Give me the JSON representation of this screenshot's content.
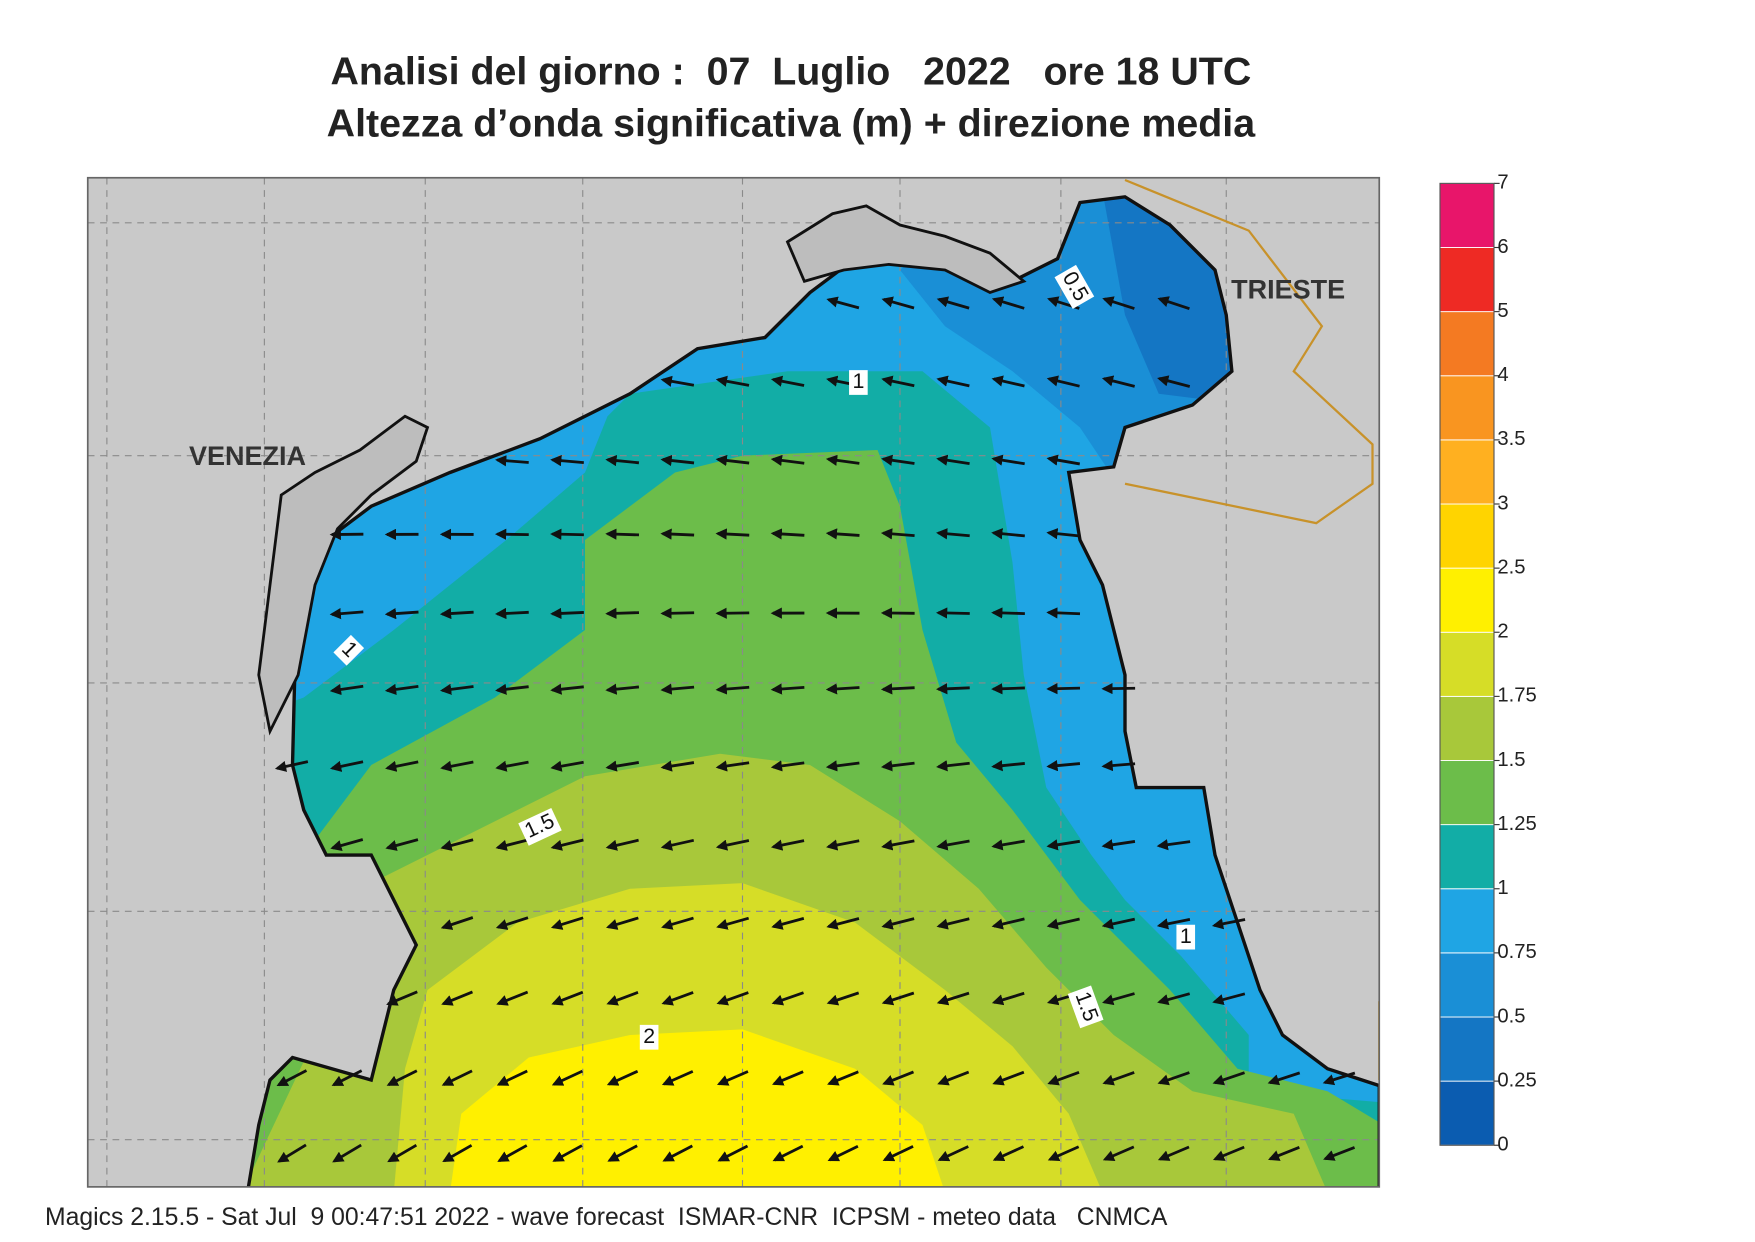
{
  "header": {
    "title": "Analisi del giorno :  07  Luglio   2022   ore 18 UTC",
    "subtitle": "Altezza d’onda significativa (m) + direzione media"
  },
  "map": {
    "places": [
      "VENEZIA",
      "TRIESTE"
    ],
    "contour_labels": [
      "0.5",
      "1",
      "1",
      "1.5",
      "1",
      "1.5",
      "2"
    ]
  },
  "colorbar": {
    "ticks": [
      0,
      0.25,
      0.5,
      0.75,
      1,
      1.25,
      1.5,
      1.75,
      2,
      2.5,
      3,
      3.5,
      4,
      5,
      6,
      7
    ],
    "colors": [
      "#0b5cb0",
      "#1476c4",
      "#1a8fd6",
      "#1fa5e4",
      "#12ada6",
      "#6cbd4a",
      "#a8c83a",
      "#d6dd27",
      "#fff000",
      "#ffd400",
      "#ffb020",
      "#f99520",
      "#f47a22",
      "#ee2a24",
      "#e8156a"
    ]
  },
  "footer": "Magics 2.15.5 - Sat Jul  9 00:47:51 2022 - wave forecast  ISMAR-CNR  ICPSM - meteo data   CNMCA"
}
